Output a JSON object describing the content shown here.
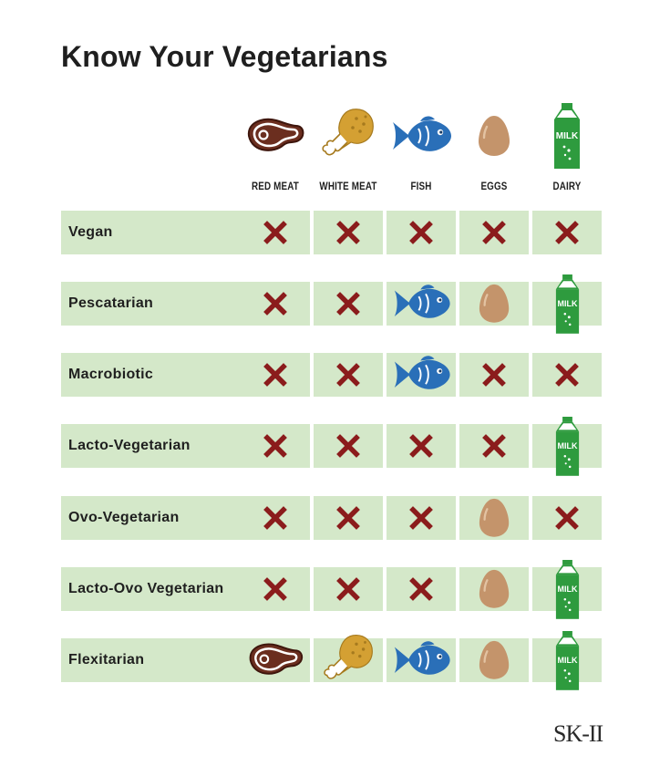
{
  "title": "Know Your Vegetarians",
  "columns": [
    {
      "key": "red_meat",
      "label": "RED MEAT",
      "icon": "steak-icon"
    },
    {
      "key": "white_meat",
      "label": "WHITE MEAT",
      "icon": "chicken-drumstick-icon"
    },
    {
      "key": "fish",
      "label": "FISH",
      "icon": "fish-icon"
    },
    {
      "key": "eggs",
      "label": "EGGS",
      "icon": "egg-icon"
    },
    {
      "key": "dairy",
      "label": "DAIRY",
      "icon": "milk-carton-icon"
    }
  ],
  "milk_text": "MILK",
  "rows": [
    {
      "name": "Vegan",
      "eats": [
        false,
        false,
        false,
        false,
        false
      ]
    },
    {
      "name": "Pescatarian",
      "eats": [
        false,
        false,
        true,
        true,
        true
      ]
    },
    {
      "name": "Macrobiotic",
      "eats": [
        false,
        false,
        true,
        false,
        false
      ]
    },
    {
      "name": "Lacto-Vegetarian",
      "eats": [
        false,
        false,
        false,
        false,
        true
      ]
    },
    {
      "name": "Ovo-Vegetarian",
      "eats": [
        false,
        false,
        false,
        true,
        false
      ]
    },
    {
      "name": "Lacto-Ovo Vegetarian",
      "eats": [
        false,
        false,
        false,
        true,
        true
      ]
    },
    {
      "name": "Flexitarian",
      "eats": [
        true,
        true,
        true,
        true,
        true
      ]
    }
  ],
  "colors": {
    "row_bg": "#d4e8c9",
    "cross": "#8b1c1c",
    "steak": "#6b2e1f",
    "chicken": "#d4a033",
    "fish": "#2a6fb8",
    "egg": "#c4946b",
    "milk": "#2e9b3e"
  },
  "brand": "SK-II"
}
